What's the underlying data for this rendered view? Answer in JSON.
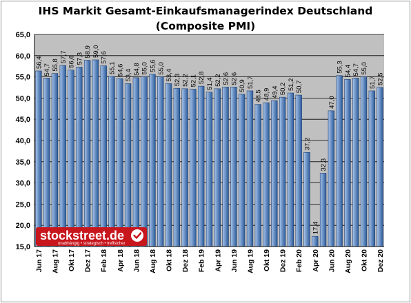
{
  "chart_data": {
    "type": "bar",
    "title_line1": "IHS Markit Gesamt-Einkaufsmanagerindex Deutschland",
    "title_line2": "(Composite PMI)",
    "ylim": [
      15,
      65
    ],
    "yticks": [
      "15,0",
      "20,0",
      "25,0",
      "30,0",
      "35,0",
      "40,0",
      "45,0",
      "50,0",
      "55,0",
      "60,0",
      "65,0"
    ],
    "grid": true,
    "categories": [
      "Jun 17",
      "Jul 17",
      "Aug 17",
      "Sep 17",
      "Okt 17",
      "Nov 17",
      "Dez 17",
      "Jan 18",
      "Feb 18",
      "Mrz 18",
      "Apr 18",
      "Mai 18",
      "Jun 18",
      "Jul 18",
      "Aug 18",
      "Sep 18",
      "Okt 18",
      "Nov 18",
      "Dez 18",
      "Jan 19",
      "Feb 19",
      "Mrz 19",
      "Apr 19",
      "Mai 19",
      "Jun 19",
      "Jul 19",
      "Aug 19",
      "Sep 19",
      "Okt 19",
      "Nov 19",
      "Dez 19",
      "Jan 20",
      "Feb 20",
      "Mrz 20",
      "Apr 20",
      "Mai 20",
      "Jun 20",
      "Jul 20",
      "Aug 20",
      "Sep 20",
      "Okt 20",
      "Nov 20",
      "Dez 20"
    ],
    "x_labels_shown": [
      "Jun 17",
      "Aug 17",
      "Okt 17",
      "Dez 17",
      "Feb 18",
      "Apr 18",
      "Jun 18",
      "Aug 18",
      "Okt 18",
      "Dez 18",
      "Feb 19",
      "Apr 19",
      "Jun 19",
      "Aug 19",
      "Okt 19",
      "Dez 19",
      "Feb 20",
      "Apr 20",
      "Jun 20",
      "Aug 20",
      "Okt 20",
      "Dez 20"
    ],
    "values": [
      56.4,
      54.7,
      55.8,
      57.7,
      56.6,
      57.3,
      58.9,
      59.0,
      57.6,
      55.1,
      54.6,
      53.4,
      54.8,
      55.0,
      55.6,
      55.0,
      53.4,
      52.3,
      52.2,
      52.1,
      52.8,
      51.4,
      52.2,
      52.6,
      52.6,
      50.9,
      51.7,
      48.5,
      48.9,
      49.4,
      50.2,
      51.2,
      50.7,
      37.2,
      17.4,
      32.3,
      47.0,
      55.3,
      54.4,
      54.7,
      55.0,
      51.7,
      52.5
    ],
    "value_labels": [
      "56,4",
      "54,7",
      "55,8",
      "57,7",
      "56,6",
      "57,3",
      "58,9",
      "59,0",
      "57,6",
      "55,1",
      "54,6",
      "53,4",
      "54,8",
      "55,0",
      "55,6",
      "55,0",
      "53,4",
      "52,3",
      "52,2",
      "52,1",
      "52,8",
      "51,4",
      "52,2",
      "52,6",
      "52,6",
      "50,9",
      "51,7",
      "48,5",
      "48,9",
      "49,4",
      "50,2",
      "51,2",
      "50,7",
      "37,2",
      "17,4",
      "32,3",
      "47,0",
      "55,3",
      "54,4",
      "54,7",
      "55,0",
      "51,7",
      "52,5"
    ],
    "colors": {
      "plot_background": "#c0c0c0",
      "bar_light": "#a8c4ea",
      "bar_dark": "#2a5a9a",
      "bar_stroke": "#1f3f6f",
      "grid": "#000000",
      "logo_background": "#c8161d"
    }
  },
  "logo": {
    "main": "stockstreet.de",
    "tagline": "unabhängig • strategisch • treffsicher",
    "icon": "checkmark-icon"
  }
}
